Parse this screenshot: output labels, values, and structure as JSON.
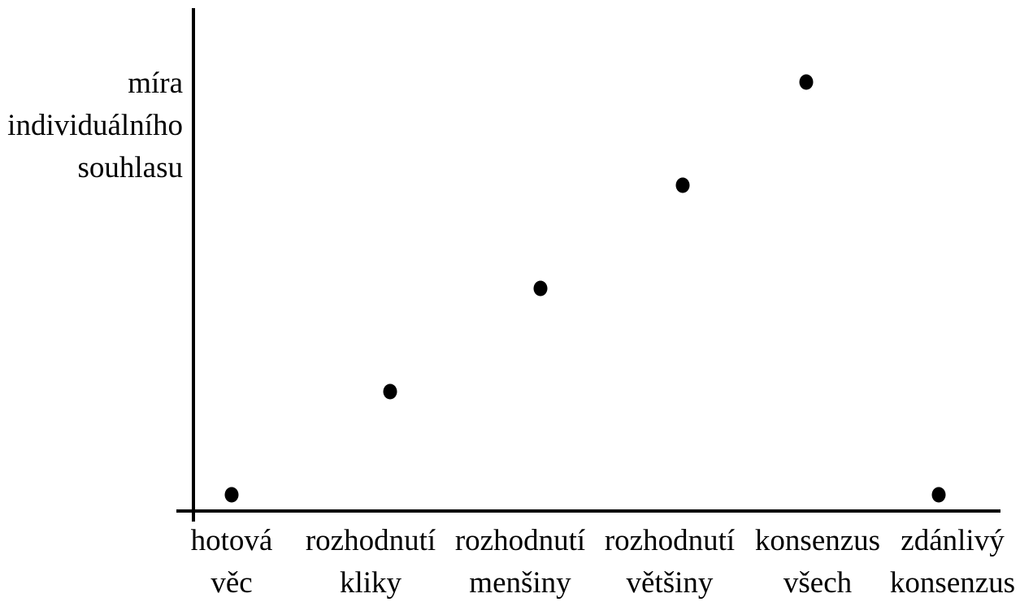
{
  "chart_data": {
    "type": "scatter",
    "title": "",
    "xlabel": "",
    "ylabel_lines": [
      "míra",
      "individuálního",
      "souhlasu"
    ],
    "categories": [
      [
        "hotová",
        "věc"
      ],
      [
        "rozhodnutí",
        "kliky"
      ],
      [
        "rozhodnutí",
        "menšiny"
      ],
      [
        "rozhodnutí",
        "většiny"
      ],
      [
        "konsenzus",
        "všech"
      ],
      [
        "zdánlivý",
        "konsenzus"
      ]
    ],
    "values": [
      0,
      1,
      2,
      3,
      4,
      0
    ],
    "ylim": [
      0,
      4
    ],
    "grid": false,
    "legend": "none",
    "colors": {
      "axis": "#000000",
      "point": "#000000"
    }
  }
}
